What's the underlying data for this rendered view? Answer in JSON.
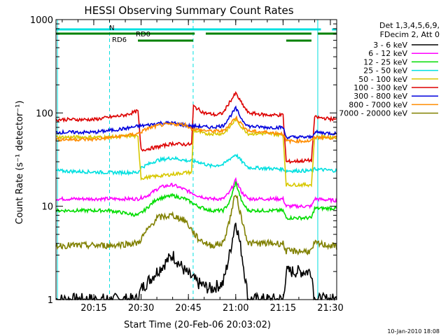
{
  "chart_data": {
    "type": "line",
    "title": "HESSI Observing Summary Count Rates",
    "xlabel": "Start Time (20-Feb-06 20:03:02)",
    "ylabel": "Count Rate (s⁻¹ detector⁻¹)",
    "y_scale": "log",
    "ylim": [
      1,
      1000
    ],
    "xlim_minutes": [
      3.03,
      92.0
    ],
    "x_ticks": [
      {
        "label": "20:15",
        "value": 15
      },
      {
        "label": "20:30",
        "value": 30
      },
      {
        "label": "20:45",
        "value": 45
      },
      {
        "label": "21:00",
        "value": 60
      },
      {
        "label": "21:15",
        "value": 75
      },
      {
        "label": "21:30",
        "value": 90
      }
    ],
    "y_ticks": [
      {
        "label": "1",
        "value": 1
      },
      {
        "label": "10",
        "value": 10
      },
      {
        "label": "100",
        "value": 100
      },
      {
        "label": "1000",
        "value": 1000
      }
    ],
    "legend": {
      "placement": "right",
      "header": [
        "Det 1,3,4,5,6,9,",
        "FDecim 2, Att 0"
      ],
      "entries": [
        {
          "label": "3 - 6 keV",
          "color": "#000000"
        },
        {
          "label": "6 - 12 keV",
          "color": "#ff00ff"
        },
        {
          "label": "12 - 25 keV",
          "color": "#00dd00"
        },
        {
          "label": "25 - 50 keV",
          "color": "#00e0e0"
        },
        {
          "label": "50 - 100 keV",
          "color": "#d8c800"
        },
        {
          "label": "100 - 300 keV",
          "color": "#dd0000"
        },
        {
          "label": "300 - 800 keV",
          "color": "#0000dd"
        },
        {
          "label": "800 - 7000 keV",
          "color": "#ff8c00"
        },
        {
          "label": "7000 - 20000 keV",
          "color": "#808000"
        }
      ]
    },
    "segments": [
      {
        "name": "N",
        "color": "#00e0e0",
        "level": "top",
        "ranges": [
          [
            3,
            87
          ],
          [
            90.5,
            92
          ]
        ]
      },
      {
        "name": "RD0",
        "color": "#008000",
        "level": "mid",
        "ranges": [
          [
            3,
            47
          ],
          [
            50.5,
            84
          ],
          [
            86,
            92
          ]
        ]
      },
      {
        "name": "RD6",
        "color": "#008000",
        "level": "low",
        "ranges": [
          [
            29,
            46.5
          ],
          [
            76,
            84
          ]
        ]
      }
    ],
    "flags": [
      {
        "color": "#00e0e0",
        "style": "dashed",
        "x": [
          20,
          46.5,
          92
        ]
      },
      {
        "color": "#00e0e0",
        "style": "solid",
        "x": [
          3.5,
          86
        ]
      }
    ],
    "series": [
      {
        "name": "3 - 6 keV",
        "color": "#000000",
        "points": [
          [
            3,
            1
          ],
          [
            29,
            1
          ],
          [
            30,
            1.3
          ],
          [
            35,
            2
          ],
          [
            40,
            3
          ],
          [
            44,
            2
          ],
          [
            48,
            1.5
          ],
          [
            52,
            1.3
          ],
          [
            56,
            1.5
          ],
          [
            58,
            3
          ],
          [
            60,
            7
          ],
          [
            62,
            3
          ],
          [
            64,
            1
          ],
          [
            75,
            1
          ],
          [
            76,
            2
          ],
          [
            84,
            2
          ],
          [
            85,
            1
          ],
          [
            87,
            1
          ],
          [
            92,
            1
          ]
        ]
      },
      {
        "name": "6 - 12 keV",
        "color": "#ff00ff",
        "points": [
          [
            3,
            12
          ],
          [
            20,
            12
          ],
          [
            29,
            12
          ],
          [
            32,
            13
          ],
          [
            36,
            16
          ],
          [
            40,
            17
          ],
          [
            44,
            15
          ],
          [
            48,
            13
          ],
          [
            52,
            12
          ],
          [
            56,
            12
          ],
          [
            58,
            14
          ],
          [
            60,
            19
          ],
          [
            62,
            14
          ],
          [
            64,
            12
          ],
          [
            75,
            12
          ],
          [
            76,
            10
          ],
          [
            84,
            10
          ],
          [
            85,
            12
          ],
          [
            92,
            11.5
          ]
        ]
      },
      {
        "name": "12 - 25 keV",
        "color": "#00dd00",
        "points": [
          [
            3,
            9
          ],
          [
            20,
            9
          ],
          [
            29,
            8
          ],
          [
            31,
            9
          ],
          [
            35,
            12
          ],
          [
            40,
            13
          ],
          [
            44,
            12
          ],
          [
            48,
            10
          ],
          [
            52,
            9
          ],
          [
            56,
            9
          ],
          [
            58,
            11
          ],
          [
            60,
            18
          ],
          [
            62,
            11
          ],
          [
            64,
            9
          ],
          [
            75,
            9
          ],
          [
            76,
            7.5
          ],
          [
            84,
            7.5
          ],
          [
            85,
            9.5
          ],
          [
            92,
            9.5
          ]
        ]
      },
      {
        "name": "25 - 50 keV",
        "color": "#00e0e0",
        "points": [
          [
            3,
            24
          ],
          [
            20,
            23
          ],
          [
            29,
            23
          ],
          [
            30,
            26
          ],
          [
            35,
            31
          ],
          [
            40,
            33
          ],
          [
            44,
            31
          ],
          [
            48,
            30
          ],
          [
            52,
            27
          ],
          [
            56,
            28
          ],
          [
            58,
            32
          ],
          [
            60,
            36
          ],
          [
            62,
            30
          ],
          [
            64,
            26
          ],
          [
            75,
            25
          ],
          [
            76,
            24
          ],
          [
            84,
            24
          ],
          [
            85,
            25
          ],
          [
            92,
            24
          ]
        ]
      },
      {
        "name": "50 - 100 keV",
        "color": "#d8c800",
        "points": [
          [
            3,
            55
          ],
          [
            20,
            55
          ],
          [
            27,
            57
          ],
          [
            29,
            55
          ],
          [
            30,
            20
          ],
          [
            35,
            21
          ],
          [
            40,
            22
          ],
          [
            44,
            23
          ],
          [
            46,
            23
          ],
          [
            46.6,
            65
          ],
          [
            50,
            60
          ],
          [
            56,
            60
          ],
          [
            58,
            70
          ],
          [
            60,
            85
          ],
          [
            62,
            70
          ],
          [
            64,
            60
          ],
          [
            70,
            60
          ],
          [
            75,
            58
          ],
          [
            76,
            17
          ],
          [
            84,
            17
          ],
          [
            85,
            55
          ],
          [
            92,
            55
          ]
        ]
      },
      {
        "name": "100 - 300 keV",
        "color": "#dd0000",
        "points": [
          [
            3,
            85
          ],
          [
            15,
            85
          ],
          [
            25,
            95
          ],
          [
            29,
            105
          ],
          [
            30,
            40
          ],
          [
            35,
            43
          ],
          [
            40,
            47
          ],
          [
            44,
            46
          ],
          [
            46,
            46
          ],
          [
            46.6,
            118
          ],
          [
            50,
            100
          ],
          [
            54,
            95
          ],
          [
            56,
            100
          ],
          [
            58,
            130
          ],
          [
            60,
            162
          ],
          [
            62,
            125
          ],
          [
            64,
            100
          ],
          [
            70,
            95
          ],
          [
            75,
            95
          ],
          [
            76,
            30
          ],
          [
            84,
            31
          ],
          [
            85,
            90
          ],
          [
            92,
            85
          ]
        ]
      },
      {
        "name": "300 - 800 keV",
        "color": "#0000dd",
        "points": [
          [
            3,
            62
          ],
          [
            15,
            62
          ],
          [
            25,
            68
          ],
          [
            29,
            72
          ],
          [
            32,
            74
          ],
          [
            36,
            78
          ],
          [
            40,
            78
          ],
          [
            44,
            74
          ],
          [
            46,
            72
          ],
          [
            48,
            72
          ],
          [
            52,
            70
          ],
          [
            56,
            73
          ],
          [
            58,
            90
          ],
          [
            60,
            112
          ],
          [
            62,
            85
          ],
          [
            64,
            72
          ],
          [
            70,
            70
          ],
          [
            75,
            70
          ],
          [
            76,
            55
          ],
          [
            84,
            55
          ],
          [
            85,
            62
          ],
          [
            92,
            60
          ]
        ]
      },
      {
        "name": "800 - 7000 keV",
        "color": "#ff8c00",
        "points": [
          [
            3,
            52
          ],
          [
            15,
            52
          ],
          [
            25,
            57
          ],
          [
            29,
            60
          ],
          [
            32,
            68
          ],
          [
            36,
            74
          ],
          [
            40,
            76
          ],
          [
            44,
            75
          ],
          [
            46,
            68
          ],
          [
            48,
            66
          ],
          [
            52,
            64
          ],
          [
            56,
            64
          ],
          [
            58,
            75
          ],
          [
            60,
            90
          ],
          [
            62,
            75
          ],
          [
            64,
            64
          ],
          [
            70,
            62
          ],
          [
            75,
            60
          ],
          [
            76,
            50
          ],
          [
            84,
            50
          ],
          [
            85,
            55
          ],
          [
            92,
            54
          ]
        ]
      },
      {
        "name": "7000 - 20000 keV",
        "color": "#808000",
        "points": [
          [
            3,
            3.8
          ],
          [
            20,
            3.8
          ],
          [
            27,
            4
          ],
          [
            29,
            4
          ],
          [
            31,
            5
          ],
          [
            35,
            7.5
          ],
          [
            40,
            8
          ],
          [
            44,
            7
          ],
          [
            48,
            4.5
          ],
          [
            52,
            3.8
          ],
          [
            56,
            4
          ],
          [
            58,
            7
          ],
          [
            60,
            14
          ],
          [
            62,
            7
          ],
          [
            64,
            4
          ],
          [
            75,
            4
          ],
          [
            76,
            3.3
          ],
          [
            84,
            3.3
          ],
          [
            85,
            4
          ],
          [
            92,
            3.7
          ]
        ]
      }
    ]
  },
  "footer": {
    "timestamp": "10-Jan-2010 18:08"
  }
}
